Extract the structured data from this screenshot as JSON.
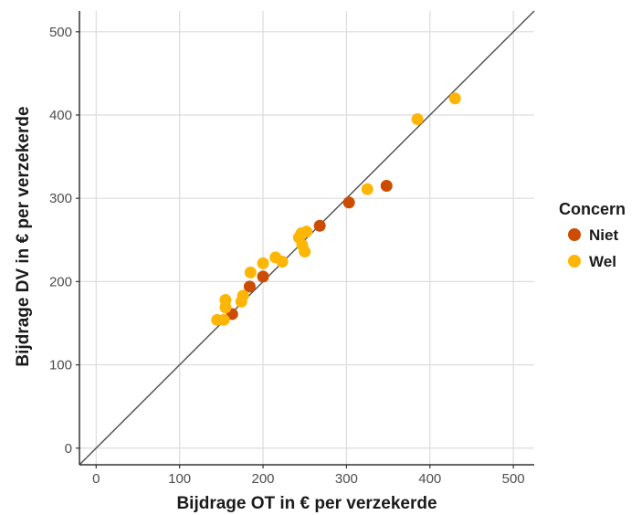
{
  "chart_data": {
    "type": "scatter",
    "title": "",
    "xlabel": "Bijdrage OT in  €  per verzekerde",
    "ylabel": "Bijdrage DV in  €  per verzekerde",
    "xlim": [
      -20,
      525
    ],
    "ylim": [
      -20,
      525
    ],
    "xticks": [
      0,
      100,
      200,
      300,
      400,
      500
    ],
    "yticks": [
      0,
      100,
      200,
      300,
      400,
      500
    ],
    "grid": true,
    "reference_line": "y = x",
    "legend": {
      "title": "Concern",
      "position": "right",
      "entries": [
        {
          "label": "Niet",
          "color": "#cc4c02"
        },
        {
          "label": "Wel",
          "color": "#fdb606"
        }
      ]
    },
    "series": [
      {
        "name": "Niet",
        "color": "#cc4c02",
        "points": [
          [
            163,
            161
          ],
          [
            184,
            194
          ],
          [
            200,
            206
          ],
          [
            268,
            267
          ],
          [
            303,
            295
          ],
          [
            348,
            315
          ]
        ]
      },
      {
        "name": "Wel",
        "color": "#fdb606",
        "points": [
          [
            145,
            154
          ],
          [
            153,
            154
          ],
          [
            155,
            178
          ],
          [
            155,
            169
          ],
          [
            174,
            176
          ],
          [
            176,
            183
          ],
          [
            185,
            211
          ],
          [
            200,
            222
          ],
          [
            215,
            229
          ],
          [
            223,
            224
          ],
          [
            243,
            253
          ],
          [
            246,
            258
          ],
          [
            252,
            260
          ],
          [
            247,
            244
          ],
          [
            250,
            236
          ],
          [
            325,
            311
          ],
          [
            385,
            395
          ],
          [
            430,
            420
          ]
        ]
      }
    ]
  }
}
